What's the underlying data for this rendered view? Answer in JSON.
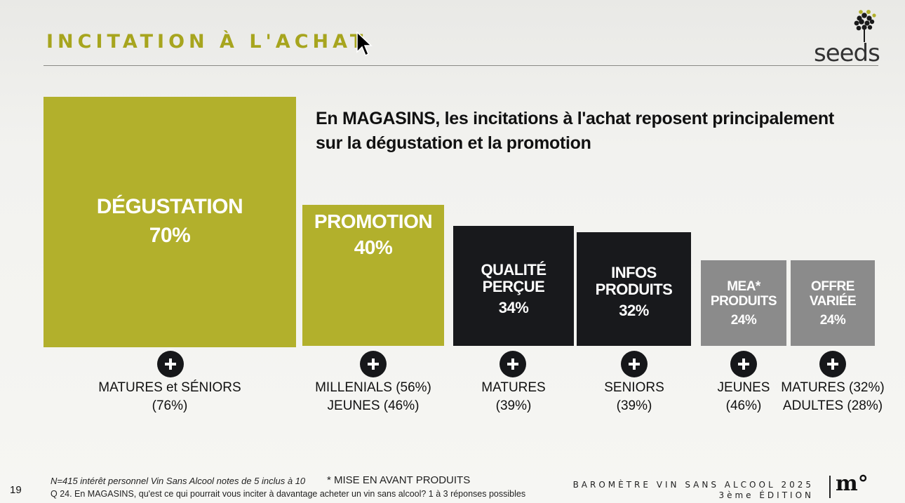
{
  "header": {
    "title": "INCITATION À L'ACHAT",
    "logo_text": "seeds"
  },
  "headline": {
    "line1": "En MAGASINS, les incitations à l'achat reposent principalement",
    "line2": "sur la dégustation et la promotion"
  },
  "colors": {
    "green": "#b2b02c",
    "dark": "#18191c",
    "gray": "#8b8b8b",
    "title": "#a7a51e"
  },
  "blocks": [
    {
      "label_lines": [
        "DÉGUSTATION"
      ],
      "value": "70%",
      "pct": 70,
      "color": "green"
    },
    {
      "label_lines": [
        "PROMOTION"
      ],
      "value": "40%",
      "pct": 40,
      "color": "green"
    },
    {
      "label_lines": [
        "QUALITÉ",
        "PERÇUE"
      ],
      "value": "34%",
      "pct": 34,
      "color": "dark"
    },
    {
      "label_lines": [
        "INFOS",
        "PRODUITS"
      ],
      "value": "32%",
      "pct": 32,
      "color": "dark"
    },
    {
      "label_lines": [
        "MEA*",
        "PRODUITS"
      ],
      "value": "24%",
      "pct": 24,
      "color": "gray"
    },
    {
      "label_lines": [
        "OFFRE",
        "VARIÉE"
      ],
      "value": "24%",
      "pct": 24,
      "color": "gray"
    }
  ],
  "segments": [
    {
      "line1": "MATURES et SÉNIORS",
      "line2": "(76%)"
    },
    {
      "line1": "MILLENIALS (56%)",
      "line2": "JEUNES (46%)"
    },
    {
      "line1": "MATURES",
      "line2": "(39%)"
    },
    {
      "line1": "SENIORS",
      "line2": "(39%)"
    },
    {
      "line1": "JEUNES",
      "line2": "(46%)"
    },
    {
      "line1": "MATURES (32%)",
      "line2": "ADULTES (28%)"
    }
  ],
  "footer": {
    "sample_note": "N=415 intérêt personnel Vin Sans Alcool notes de 5 inclus à 10",
    "mea_note": "* MISE EN AVANT PRODUITS",
    "question": "Q 24. En MAGASINS, qu'est ce qui pourrait vous inciter à davantage acheter un vin sans alcool? 1 à 3 réponses possibles",
    "page_number": "19",
    "barometer": "BAROMÈTRE VIN SANS ALCOOL 2025",
    "edition": "3ème ÉDITION",
    "brand_logo": "m°"
  }
}
